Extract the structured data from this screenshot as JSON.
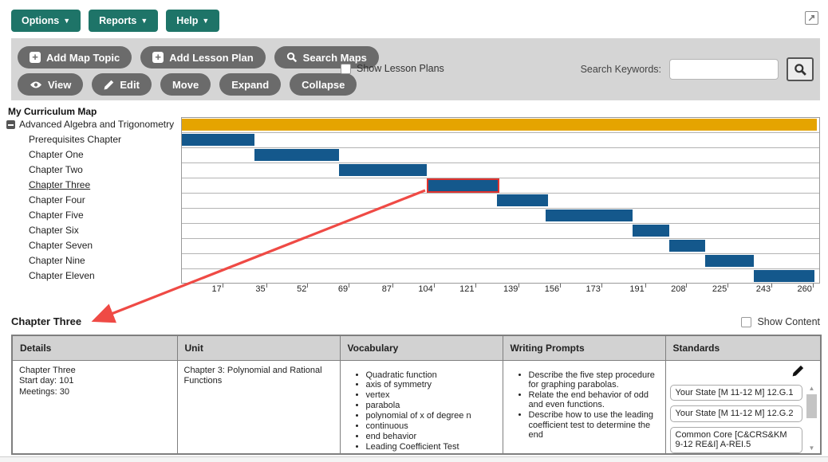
{
  "menubar": {
    "options": "Options",
    "reports": "Reports",
    "help": "Help"
  },
  "toolbar": {
    "add_map_topic": "Add Map Topic",
    "add_lesson_plan": "Add Lesson Plan",
    "search_maps": "Search Maps",
    "show_lesson_plans": "Show Lesson Plans",
    "search_keywords_label": "Search Keywords:",
    "search_value": "",
    "view": "View",
    "edit": "Edit",
    "move": "Move",
    "expand": "Expand",
    "collapse": "Collapse"
  },
  "map_title": "My Curriculum Map",
  "chart_data": {
    "type": "gantt",
    "title": "My Curriculum Map",
    "x_domain": [
      0,
      263
    ],
    "x_ticks": [
      17,
      35,
      52,
      69,
      87,
      104,
      121,
      139,
      156,
      173,
      191,
      208,
      225,
      243,
      260
    ],
    "rows": [
      {
        "label": "Advanced Algebra and Trigonometry",
        "start": 0,
        "end": 262,
        "color": "gold",
        "root": true
      },
      {
        "label": "Prerequisites Chapter",
        "start": 0,
        "end": 30
      },
      {
        "label": "Chapter One",
        "start": 30,
        "end": 65
      },
      {
        "label": "Chapter Two",
        "start": 65,
        "end": 101
      },
      {
        "label": "Chapter Three",
        "start": 101,
        "end": 131,
        "selected": true
      },
      {
        "label": "Chapter Four",
        "start": 130,
        "end": 151
      },
      {
        "label": "Chapter Five",
        "start": 150,
        "end": 186
      },
      {
        "label": "Chapter Six",
        "start": 186,
        "end": 201
      },
      {
        "label": "Chapter Seven",
        "start": 201,
        "end": 216
      },
      {
        "label": "Chapter Nine",
        "start": 216,
        "end": 236
      },
      {
        "label": "Chapter Eleven",
        "start": 236,
        "end": 261
      }
    ]
  },
  "detail": {
    "heading": "Chapter Three",
    "show_content_label": "Show Content",
    "table": {
      "headers": [
        "Details",
        "Unit",
        "Vocabulary",
        "Writing Prompts",
        "Standards"
      ],
      "details_lines": [
        "Chapter Three",
        "Start day: 101",
        "Meetings: 30"
      ],
      "unit": "Chapter 3: Polynomial and Rational Functions",
      "vocabulary": [
        "Quadratic function",
        "axis of symmetry",
        "vertex",
        "parabola",
        "polynomial of x of degree n",
        "continuous",
        "end behavior",
        "Leading Coefficient Test"
      ],
      "writing_prompts": [
        "Describe the five step procedure for graphing parabolas.",
        "Relate the end behavior of odd and even functions.",
        "Describe how to use the leading coefficient test to determine the end"
      ],
      "standards": [
        "Your State [M 11-12 M] 12.G.1",
        "Your State [M 11-12 M] 12.G.2",
        "Common Core [C&CRS&KM 9-12 RE&I] A-REI.5"
      ]
    }
  },
  "colors": {
    "teal": "#1e7468",
    "button_gray": "#6b6b6b",
    "bar_blue": "#14588c",
    "bar_gold": "#e5a400",
    "highlight_red": "#e0322e",
    "arrow_red": "#ef4a45"
  }
}
